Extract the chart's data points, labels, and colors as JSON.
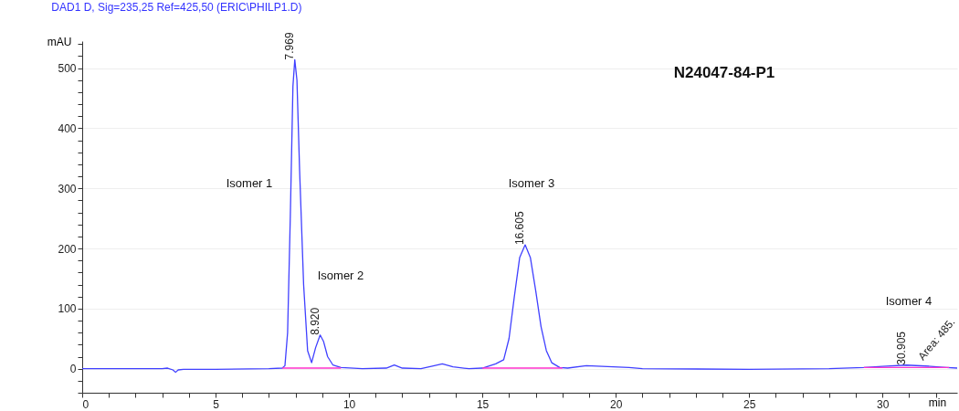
{
  "chart_data": {
    "type": "line",
    "title": "DAD1 D, Sig=235,25 Ref=425,50 (ERIC\\PHILP1.D)",
    "ylabel": "mAU",
    "xlabel": "min",
    "xlim": [
      0,
      32.8
    ],
    "ylim": [
      -40,
      545
    ],
    "xticks": [
      0,
      {
        "value": 1,
        "label": null
      },
      {
        "value": 2,
        "label": null
      },
      {
        "value": 3,
        "label": null
      },
      {
        "value": 4,
        "label": null
      },
      5,
      {
        "value": 6,
        "label": null
      },
      {
        "value": 7,
        "label": null
      },
      {
        "value": 8,
        "label": null
      },
      {
        "value": 9,
        "label": null
      },
      10,
      {
        "value": 11,
        "label": null
      },
      {
        "value": 12,
        "label": null
      },
      {
        "value": 13,
        "label": null
      },
      {
        "value": 14,
        "label": null
      },
      15,
      {
        "value": 16,
        "label": null
      },
      {
        "value": 17,
        "label": null
      },
      {
        "value": 18,
        "label": null
      },
      {
        "value": 19,
        "label": null
      },
      20,
      {
        "value": 21,
        "label": null
      },
      {
        "value": 22,
        "label": null
      },
      {
        "value": 23,
        "label": null
      },
      {
        "value": 24,
        "label": null
      },
      25,
      {
        "value": 26,
        "label": null
      },
      {
        "value": 27,
        "label": null
      },
      {
        "value": 28,
        "label": null
      },
      {
        "value": 29,
        "label": null
      },
      30,
      {
        "value": 31,
        "label": null
      },
      {
        "value": 32,
        "label": null
      }
    ],
    "yticks": [
      {
        "value": -40,
        "label": null
      },
      {
        "value": -20,
        "label": null
      },
      0,
      {
        "value": 20,
        "label": null
      },
      {
        "value": 40,
        "label": null
      },
      {
        "value": 60,
        "label": null
      },
      {
        "value": 80,
        "label": null
      },
      100,
      {
        "value": 120,
        "label": null
      },
      {
        "value": 140,
        "label": null
      },
      {
        "value": 160,
        "label": null
      },
      {
        "value": 180,
        "label": null
      },
      200,
      {
        "value": 220,
        "label": null
      },
      {
        "value": 240,
        "label": null
      },
      {
        "value": 260,
        "label": null
      },
      {
        "value": 280,
        "label": null
      },
      300,
      {
        "value": 320,
        "label": null
      },
      {
        "value": 340,
        "label": null
      },
      {
        "value": 360,
        "label": null
      },
      {
        "value": 380,
        "label": null
      },
      400,
      {
        "value": 420,
        "label": null
      },
      {
        "value": 440,
        "label": null
      },
      {
        "value": 460,
        "label": null
      },
      {
        "value": 480,
        "label": null
      },
      500,
      {
        "value": 520,
        "label": null
      },
      {
        "value": 540,
        "label": null
      }
    ],
    "grid": "y",
    "series": [
      {
        "color": "#4040ff",
        "x": [
          0,
          3.0,
          3.2,
          3.4,
          3.5,
          3.6,
          3.8,
          5,
          7,
          7.5,
          7.6,
          7.7,
          7.8,
          7.9,
          7.969,
          8.05,
          8.15,
          8.3,
          8.45,
          8.6,
          8.75,
          8.92,
          9.05,
          9.2,
          9.4,
          9.7,
          10.5,
          11.4,
          11.7,
          12.0,
          12.7,
          13.2,
          13.5,
          13.9,
          14.5,
          15.0,
          15.5,
          15.8,
          16.0,
          16.2,
          16.4,
          16.605,
          16.8,
          17.0,
          17.2,
          17.4,
          17.6,
          17.9,
          18.2,
          18.9,
          19.5,
          20.5,
          21,
          25,
          28,
          29.3,
          30.0,
          30.905,
          31.8,
          32.4,
          32.8
        ],
        "values": [
          0,
          0,
          1,
          -2,
          -6,
          -2,
          -1,
          -1,
          0,
          1,
          5,
          60,
          250,
          470,
          514,
          480,
          330,
          140,
          30,
          10,
          35,
          56,
          45,
          20,
          6,
          2,
          0,
          1,
          6,
          1,
          0,
          5,
          8,
          3,
          0,
          1,
          8,
          15,
          50,
          120,
          185,
          206,
          185,
          130,
          70,
          30,
          10,
          2,
          1,
          5,
          4,
          2,
          0,
          -1,
          0,
          2,
          4,
          6,
          4,
          2,
          1
        ]
      },
      {
        "color": "#ff33cc",
        "x": [
          7.5,
          9.7,
          12,
          15.0,
          18.0,
          25,
          29.3,
          32.5
        ],
        "values": [
          1,
          1,
          null,
          1,
          1,
          null,
          2,
          2
        ]
      }
    ],
    "annotations": [
      "Isomer 1",
      "Isomer 2",
      "Isomer 3",
      "Isomer 4",
      {
        "text": "7.969",
        "x": 7.969,
        "y": 514
      },
      {
        "text": "8.920",
        "x": 8.92,
        "y": 56
      },
      {
        "text": "16.605",
        "x": 16.605,
        "y": 206
      },
      {
        "text": "30.905",
        "x": 30.905,
        "y": 6
      },
      {
        "text": "Area: 485.",
        "x": 31.6,
        "y": 10
      },
      "N24047-84-P1"
    ]
  }
}
